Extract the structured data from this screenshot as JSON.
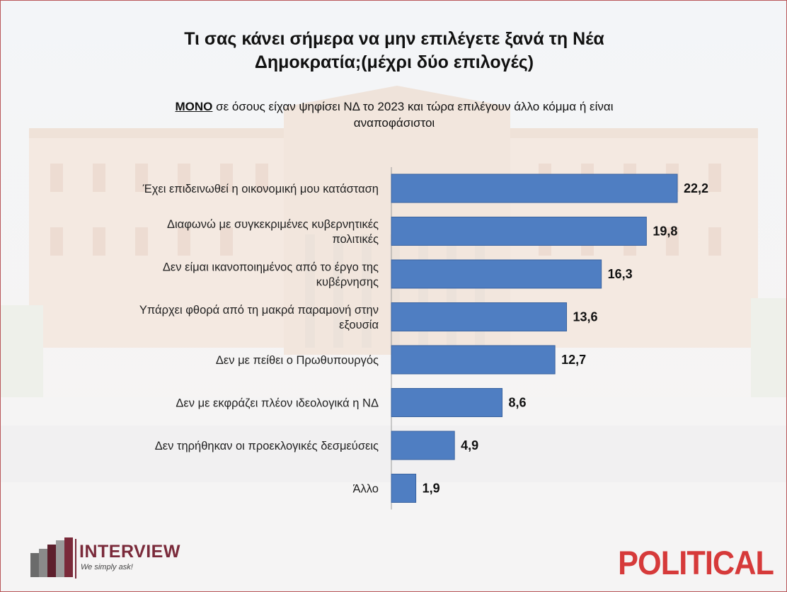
{
  "title": "Τι σας κάνει σήμερα να μην επιλέγετε ξανά τη Νέα Δημοκρατία;(μέχρι δύο επιλογές)",
  "title_line1": "Τι σας κάνει σήμερα να μην επιλέγετε ξανά τη Νέα",
  "title_line2": "Δημοκρατία;(μέχρι δύο επιλογές)",
  "subtitle_emph": "ΜΟΝΟ",
  "subtitle_line1_rest": " σε όσους είχαν ψηφίσει ΝΔ το 2023 και τώρα επιλέγουν άλλο κόμμα ή είναι",
  "subtitle_line2": "αναποφάσιστοι",
  "colors": {
    "bar": "#4f7ec2",
    "bar_edge": "#3a63a0",
    "brand_interview": "#7a2a3a",
    "brand_political": "#d63a3a"
  },
  "chart_data": {
    "type": "bar",
    "orientation": "horizontal",
    "title": "Τι σας κάνει σήμερα να μην επιλέγετε ξανά τη Νέα Δημοκρατία;(μέχρι δύο επιλογές)",
    "subtitle": "ΜΟΝΟ σε όσους είχαν ψηφίσει ΝΔ το 2023 και τώρα επιλέγουν άλλο κόμμα ή είναι αναποφάσιστοι",
    "categories": [
      [
        "Έχει επιδεινωθεί η οικονομική μου κατάσταση"
      ],
      [
        "Διαφωνώ με συγκεκριμένες κυβερνητικές",
        "πολιτικές"
      ],
      [
        "Δεν είμαι ικανοποιημένος από το έργο της",
        "κυβέρνησης"
      ],
      [
        "Υπάρχει φθορά από τη μακρά παραμονή στην",
        "εξουσία"
      ],
      [
        "Δεν με πείθει ο Πρωθυπουργός"
      ],
      [
        "Δεν με εκφράζει πλέον ιδεολογικά η ΝΔ"
      ],
      [
        "Δεν τηρήθηκαν οι προεκλογικές δεσμεύσεις"
      ],
      [
        "Άλλο"
      ]
    ],
    "values": [
      22.2,
      19.8,
      16.3,
      13.6,
      12.7,
      8.6,
      4.9,
      1.9
    ],
    "value_labels": [
      "22,2",
      "19,8",
      "16,3",
      "13,6",
      "12,7",
      "8,6",
      "4,9",
      "1,9"
    ],
    "xlim": [
      0,
      25
    ],
    "xlabel": "",
    "ylabel": "",
    "grid": false,
    "legend": "none"
  },
  "footer": {
    "interview_name": "INTERVIEW",
    "interview_tagline": "We simply ask!",
    "political": "POLITICAL"
  }
}
